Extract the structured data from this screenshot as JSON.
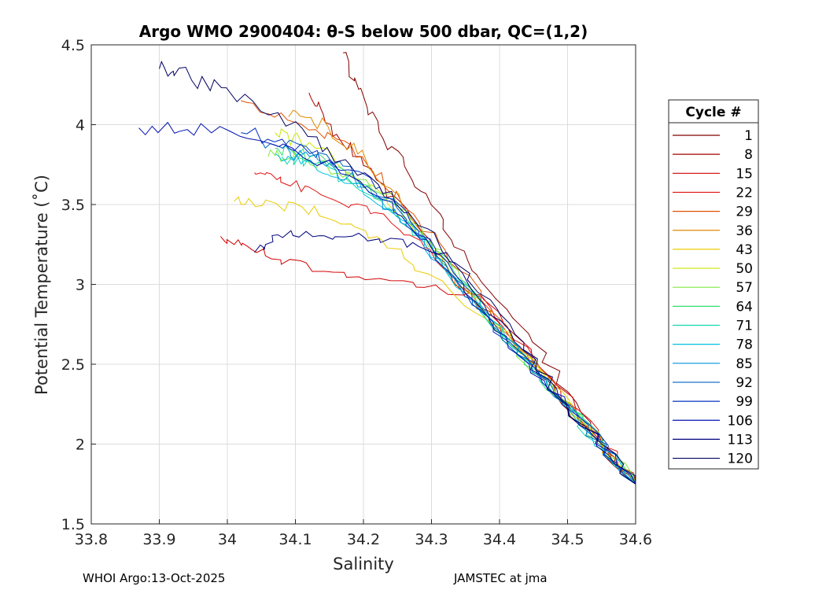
{
  "chart_data": {
    "type": "line",
    "title": "Argo WMO 2900404: θ-S below 500 dbar,  QC=(1,2)",
    "xlabel": "Salinity",
    "ylabel": "Potential Temperature (˚C)",
    "xlim": [
      33.8,
      34.6
    ],
    "ylim": [
      1.5,
      4.5
    ],
    "xticks": [
      "33.8",
      "33.9",
      "34",
      "34.1",
      "34.2",
      "34.3",
      "34.4",
      "34.5",
      "34.6"
    ],
    "yticks": [
      "1.5",
      "2",
      "2.5",
      "3",
      "3.5",
      "4",
      "4.5"
    ],
    "grid": true,
    "legend": {
      "title": "Cycle #",
      "placement": "outside-right",
      "entries": [
        {
          "label": "1",
          "color": "#800000"
        },
        {
          "label": "8",
          "color": "#a40000"
        },
        {
          "label": "15",
          "color": "#d10000"
        },
        {
          "label": "22",
          "color": "#e01010"
        },
        {
          "label": "29",
          "color": "#e05000"
        },
        {
          "label": "36",
          "color": "#e08a00"
        },
        {
          "label": "43",
          "color": "#e8cc00"
        },
        {
          "label": "50",
          "color": "#c8e800"
        },
        {
          "label": "57",
          "color": "#80e840"
        },
        {
          "label": "64",
          "color": "#30e070"
        },
        {
          "label": "71",
          "color": "#10d8b0"
        },
        {
          "label": "78",
          "color": "#00c0e0"
        },
        {
          "label": "85",
          "color": "#0090e0"
        },
        {
          "label": "92",
          "color": "#0060c0"
        },
        {
          "label": "99",
          "color": "#0030c0"
        },
        {
          "label": "106",
          "color": "#0010b0"
        },
        {
          "label": "113",
          "color": "#000080"
        },
        {
          "label": "120",
          "color": "#000060"
        }
      ]
    },
    "series": [
      {
        "name": "1",
        "color": "#800000",
        "x": [
          34.6,
          34.52,
          34.44,
          34.36,
          34.3,
          34.24,
          34.2,
          34.17
        ],
        "y": [
          1.75,
          2.2,
          2.7,
          3.1,
          3.5,
          3.85,
          4.15,
          4.45
        ]
      },
      {
        "name": "8",
        "color": "#a40000",
        "x": [
          34.6,
          34.5,
          34.4,
          34.33,
          34.27,
          34.2,
          34.15,
          34.12
        ],
        "y": [
          1.75,
          2.25,
          2.75,
          3.05,
          3.4,
          3.75,
          4.0,
          4.2
        ]
      },
      {
        "name": "15",
        "color": "#d10000",
        "x": [
          34.6,
          34.5,
          34.38,
          34.28,
          34.18,
          34.08,
          34.03,
          33.99
        ],
        "y": [
          1.75,
          2.3,
          2.9,
          3.0,
          3.05,
          3.15,
          3.25,
          3.3
        ]
      },
      {
        "name": "22",
        "color": "#e01010",
        "x": [
          34.6,
          34.5,
          34.4,
          34.3,
          34.22,
          34.15,
          34.08,
          34.04
        ],
        "y": [
          1.75,
          2.28,
          2.8,
          3.2,
          3.45,
          3.55,
          3.65,
          3.7
        ]
      },
      {
        "name": "29",
        "color": "#e05000",
        "x": [
          34.6,
          34.5,
          34.41,
          34.33,
          34.25,
          34.18,
          34.1,
          34.02
        ],
        "y": [
          1.75,
          2.25,
          2.75,
          3.15,
          3.55,
          3.85,
          4.05,
          4.15
        ]
      },
      {
        "name": "36",
        "color": "#e08a00",
        "x": [
          34.6,
          34.5,
          34.4,
          34.32,
          34.26,
          34.2,
          34.14,
          34.09
        ],
        "y": [
          1.75,
          2.25,
          2.72,
          3.1,
          3.5,
          3.8,
          4.0,
          4.05
        ]
      },
      {
        "name": "43",
        "color": "#e8cc00",
        "x": [
          34.6,
          34.5,
          34.4,
          34.3,
          34.22,
          34.14,
          34.06,
          34.01
        ],
        "y": [
          1.75,
          2.27,
          2.7,
          3.05,
          3.3,
          3.45,
          3.5,
          3.52
        ]
      },
      {
        "name": "50",
        "color": "#c8e800",
        "x": [
          34.6,
          34.5,
          34.41,
          34.32,
          34.24,
          34.17,
          34.11,
          34.07
        ],
        "y": [
          1.75,
          2.25,
          2.68,
          3.12,
          3.5,
          3.75,
          3.9,
          3.95
        ]
      },
      {
        "name": "57",
        "color": "#80e840",
        "x": [
          34.6,
          34.5,
          34.41,
          34.32,
          34.24,
          34.16,
          34.1,
          34.06
        ],
        "y": [
          1.75,
          2.24,
          2.66,
          3.15,
          3.55,
          3.72,
          3.82,
          3.8
        ]
      },
      {
        "name": "64",
        "color": "#30e070",
        "x": [
          34.6,
          34.5,
          34.41,
          34.32,
          34.24,
          34.17,
          34.11,
          34.07
        ],
        "y": [
          1.75,
          2.24,
          2.66,
          3.15,
          3.5,
          3.7,
          3.82,
          3.85
        ]
      },
      {
        "name": "71",
        "color": "#10d8b0",
        "x": [
          34.6,
          34.5,
          34.41,
          34.32,
          34.25,
          34.18,
          34.12,
          34.08
        ],
        "y": [
          1.75,
          2.24,
          2.67,
          3.12,
          3.45,
          3.65,
          3.78,
          3.8
        ]
      },
      {
        "name": "78",
        "color": "#00c0e0",
        "x": [
          34.6,
          34.5,
          34.41,
          34.32,
          34.25,
          34.17,
          34.11,
          34.07
        ],
        "y": [
          1.75,
          2.24,
          2.66,
          3.1,
          3.45,
          3.65,
          3.78,
          3.82
        ]
      },
      {
        "name": "85",
        "color": "#0090e0",
        "x": [
          34.6,
          34.5,
          34.41,
          34.32,
          34.25,
          34.18,
          34.12,
          34.08
        ],
        "y": [
          1.75,
          2.24,
          2.66,
          3.1,
          3.45,
          3.66,
          3.8,
          3.85
        ]
      },
      {
        "name": "92",
        "color": "#0060c0",
        "x": [
          34.6,
          34.5,
          34.41,
          34.32,
          34.25,
          34.18,
          34.11,
          34.05
        ],
        "y": [
          1.75,
          2.24,
          2.66,
          3.12,
          3.48,
          3.7,
          3.85,
          3.9
        ]
      },
      {
        "name": "99",
        "color": "#0030c0",
        "x": [
          34.6,
          34.5,
          34.41,
          34.32,
          34.25,
          34.18,
          34.1,
          34.02
        ],
        "y": [
          1.75,
          2.24,
          2.65,
          3.12,
          3.5,
          3.72,
          3.88,
          3.95
        ]
      },
      {
        "name": "106",
        "color": "#0010b0",
        "x": [
          34.6,
          34.5,
          34.41,
          34.32,
          34.24,
          34.16,
          34.06,
          33.95,
          33.87
        ],
        "y": [
          1.75,
          2.24,
          2.66,
          3.12,
          3.5,
          3.75,
          3.9,
          3.98,
          3.98
        ]
      },
      {
        "name": "113",
        "color": "#000080",
        "x": [
          34.6,
          34.5,
          34.41,
          34.32,
          34.23,
          34.15,
          34.08,
          34.04
        ],
        "y": [
          1.75,
          2.24,
          2.7,
          3.2,
          3.28,
          3.3,
          3.32,
          3.2
        ]
      },
      {
        "name": "120",
        "color": "#000060",
        "x": [
          34.6,
          34.5,
          34.42,
          34.34,
          34.26,
          34.18,
          34.1,
          34.0,
          33.93,
          33.9
        ],
        "y": [
          1.75,
          2.24,
          2.7,
          3.12,
          3.48,
          3.75,
          3.98,
          4.2,
          4.32,
          4.35
        ]
      }
    ]
  },
  "footer": {
    "left": "WHOI Argo:13-Oct-2025",
    "right": "JAMSTEC at jma"
  }
}
